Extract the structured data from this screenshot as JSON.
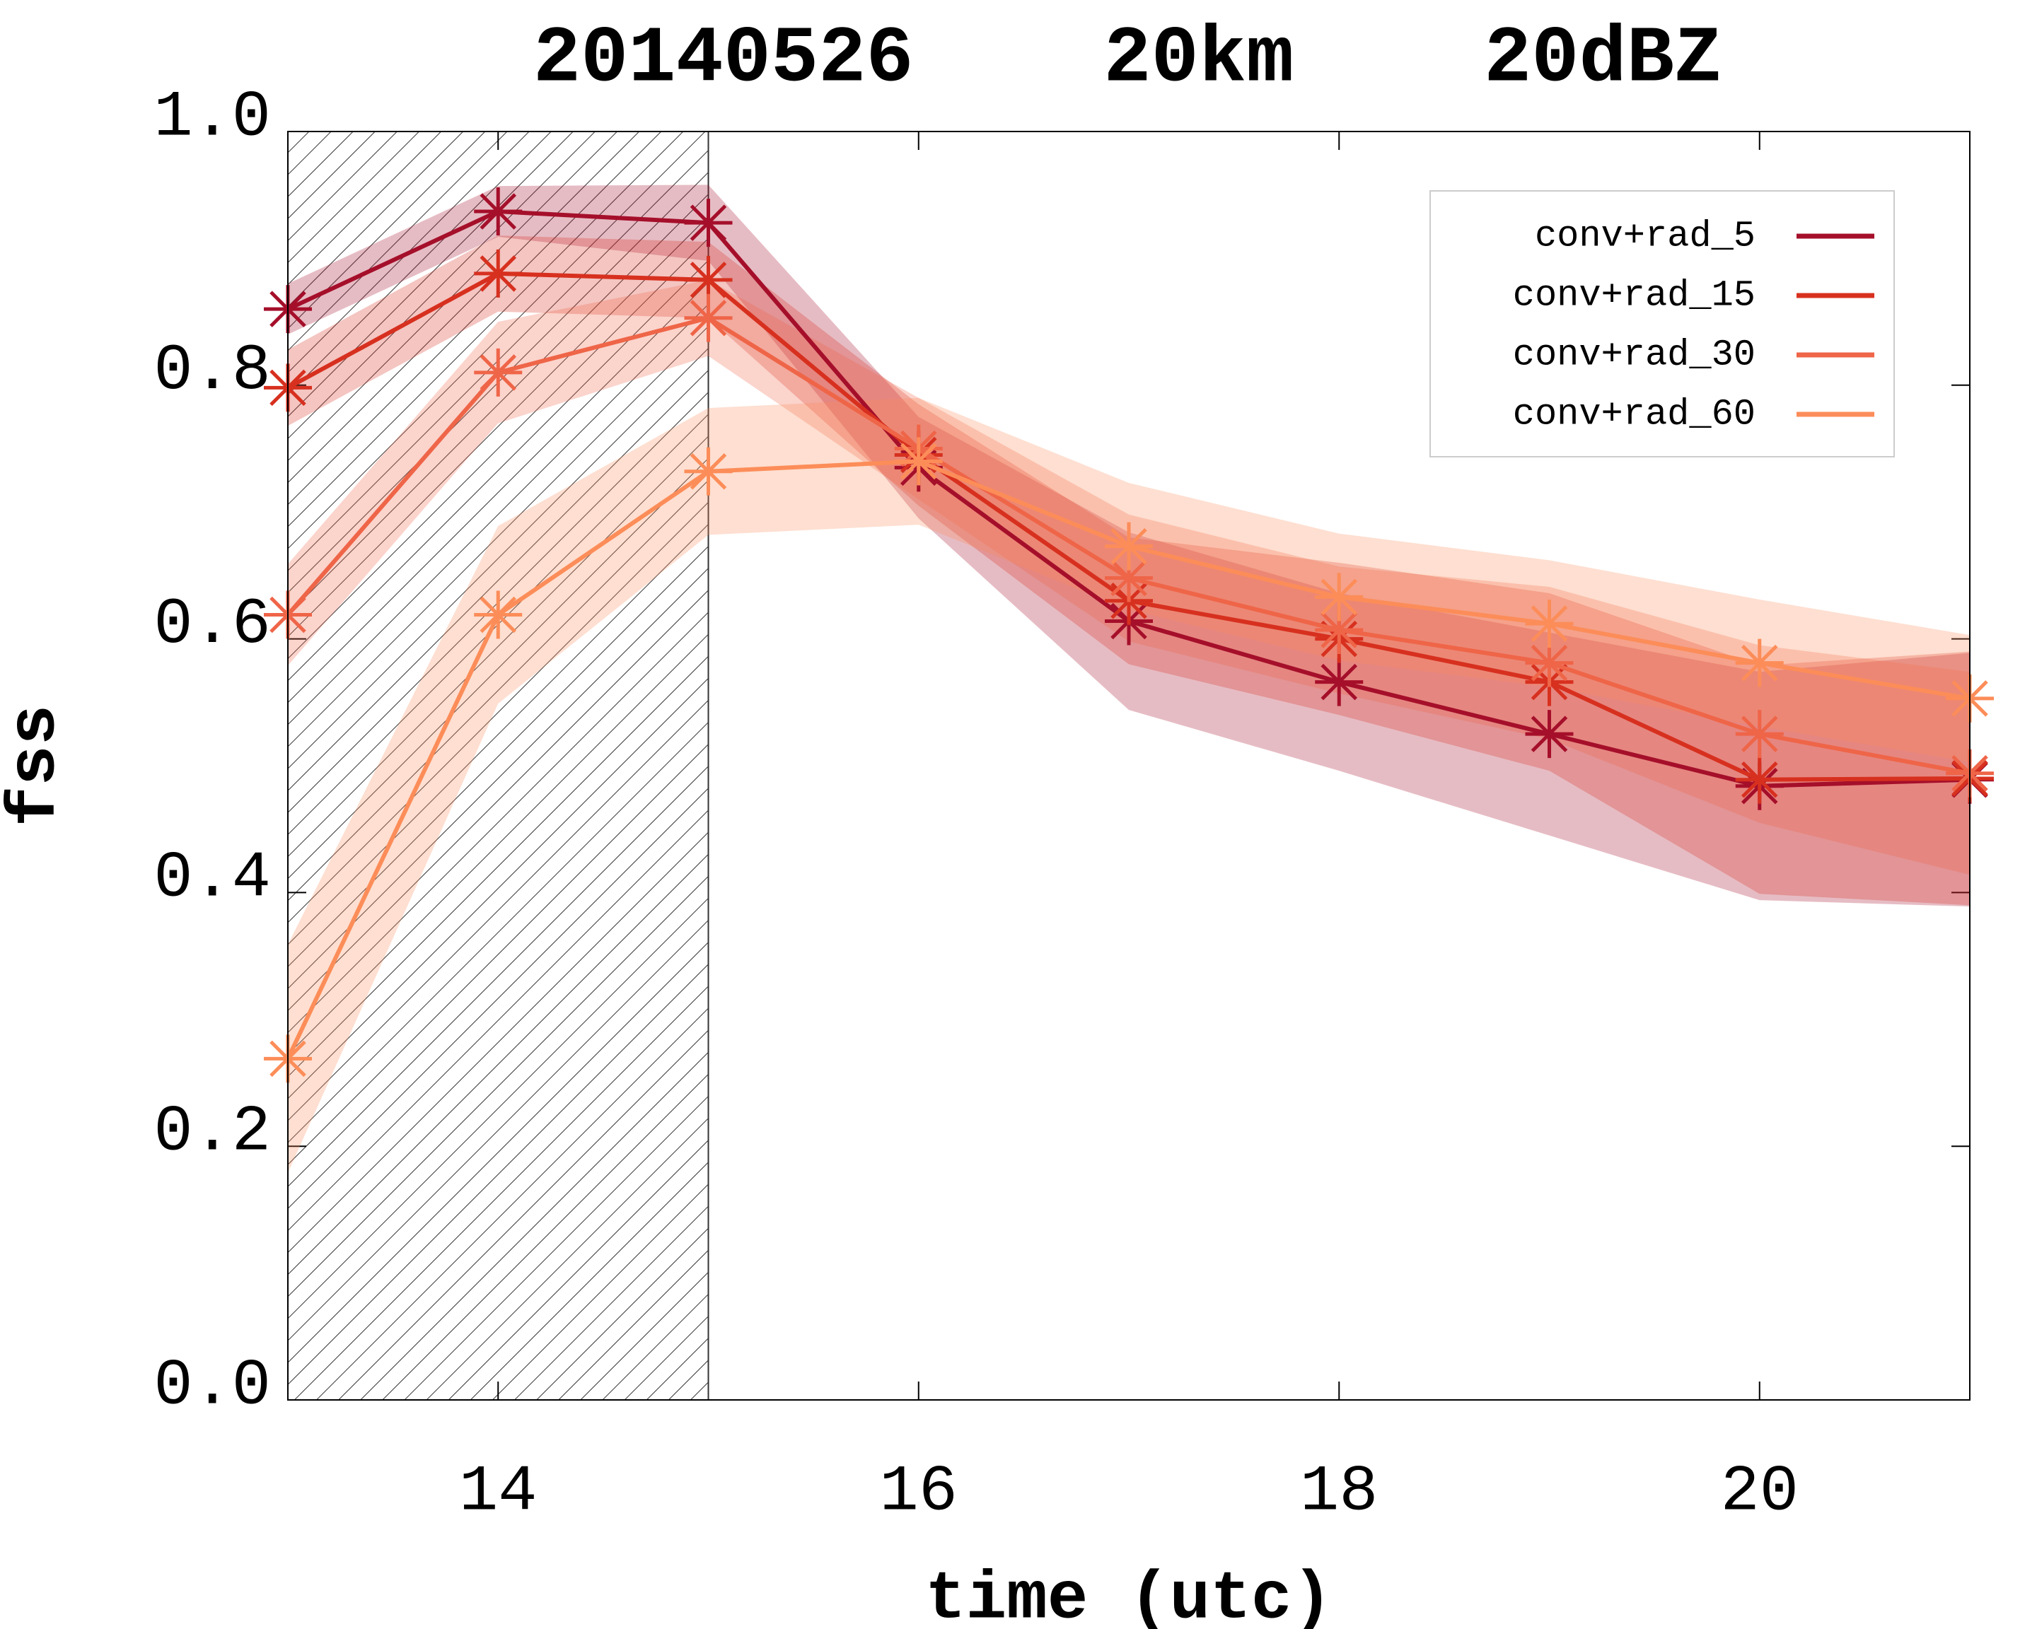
{
  "chart_data": {
    "type": "line",
    "title": "20140526    20km    20dBZ",
    "xlabel": "time (utc)",
    "ylabel": "fss",
    "x": [
      13,
      14,
      15,
      16,
      17,
      18,
      19,
      20,
      21
    ],
    "xlim": [
      13,
      21
    ],
    "xticks": [
      14,
      16,
      18,
      20
    ],
    "ylim": [
      0,
      1
    ],
    "yticks": [
      {
        "value": 0,
        "label": "0.0"
      },
      {
        "value": 0.2,
        "label": "0.2"
      },
      {
        "value": 0.4,
        "label": "0.4"
      },
      {
        "value": 0.6,
        "label": "0.6"
      },
      {
        "value": 0.8,
        "label": "0.8"
      },
      {
        "value": 1,
        "label": "1.0"
      }
    ],
    "shaded_region": [
      13,
      15
    ],
    "legend": "upper right",
    "series": [
      {
        "name": "conv+rad_5",
        "color": "#a50f2a",
        "values": [
          0.86,
          0.937,
          0.928,
          0.735,
          0.614,
          0.566,
          0.525,
          0.484,
          0.489
        ],
        "errors": [
          0.02,
          0.02,
          0.03,
          0.04,
          0.07,
          0.07,
          0.08,
          0.09,
          0.1
        ]
      },
      {
        "name": "conv+rad_15",
        "color": "#d7301f",
        "values": [
          0.798,
          0.888,
          0.883,
          0.745,
          0.63,
          0.6,
          0.566,
          0.489,
          0.49
        ],
        "errors": [
          0.03,
          0.03,
          0.03,
          0.04,
          0.05,
          0.06,
          0.07,
          0.09,
          0.1
        ]
      },
      {
        "name": "conv+rad_30",
        "color": "#ef6548",
        "values": [
          0.619,
          0.81,
          0.853,
          0.75,
          0.648,
          0.607,
          0.581,
          0.525,
          0.494
        ],
        "errors": [
          0.04,
          0.04,
          0.03,
          0.04,
          0.05,
          0.05,
          0.06,
          0.07,
          0.08
        ]
      },
      {
        "name": "conv+rad_60",
        "color": "#fc8d59",
        "values": [
          0.269,
          0.619,
          0.732,
          0.74,
          0.673,
          0.633,
          0.612,
          0.581,
          0.553
        ],
        "errors": [
          0.09,
          0.07,
          0.05,
          0.05,
          0.05,
          0.05,
          0.05,
          0.05,
          0.05
        ]
      }
    ]
  }
}
